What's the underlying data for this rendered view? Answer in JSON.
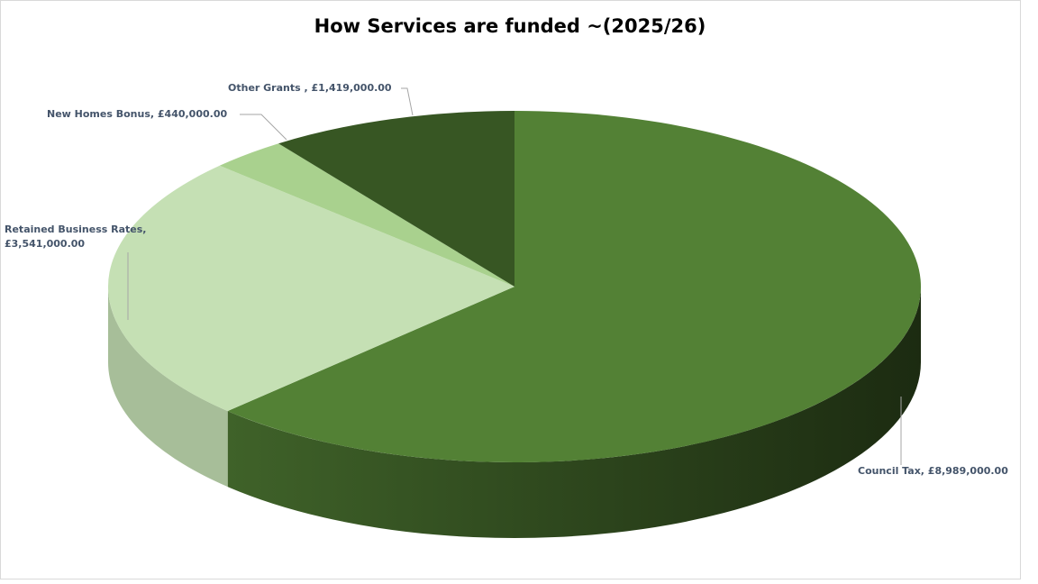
{
  "chart_data": {
    "type": "pie3d",
    "title": "How Services are funded ~(2025/26)",
    "values": [
      8989000,
      3541000,
      440000,
      1419000
    ],
    "value_labels": [
      "Council Tax, £8,989,000.00",
      "Retained Business Rates, £3,541,000.00",
      "New Homes Bonus, £440,000.00",
      "Other Grants , £1,419,000.00"
    ],
    "colors": [
      "#538135",
      "#c5e0b4",
      "#a9d18e",
      "#375623"
    ]
  }
}
